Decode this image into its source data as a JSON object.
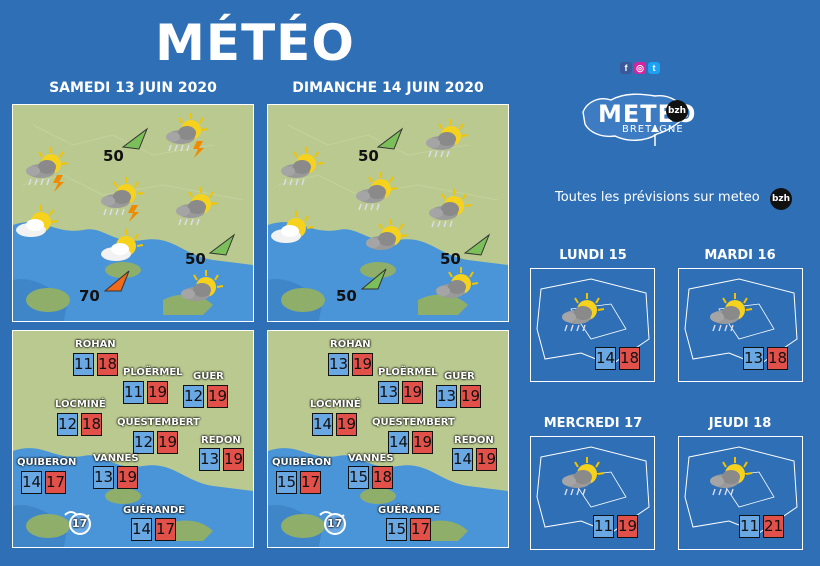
{
  "title": "MÉTÉO",
  "days": [
    {
      "label": "SAMEDI 13 JUIN 2020",
      "winds": [
        "50",
        "50",
        "70"
      ],
      "towns": [
        {
          "name": "ROHAN",
          "min": "11",
          "max": "18"
        },
        {
          "name": "PLOËRMEL",
          "min": "11",
          "max": "19"
        },
        {
          "name": "GUER",
          "min": "12",
          "max": "19"
        },
        {
          "name": "LOCMINÉ",
          "min": "12",
          "max": "18"
        },
        {
          "name": "QUESTEMBERT",
          "min": "12",
          "max": "19"
        },
        {
          "name": "REDON",
          "min": "13",
          "max": "19"
        },
        {
          "name": "QUIBERON",
          "min": "14",
          "max": "17"
        },
        {
          "name": "VANNES",
          "min": "13",
          "max": "19"
        },
        {
          "name": "GUÉRANDE",
          "min": "14",
          "max": "17"
        }
      ],
      "sea_temp": "17"
    },
    {
      "label": "DIMANCHE 14 JUIN 2020",
      "winds": [
        "50",
        "50",
        "50"
      ],
      "towns": [
        {
          "name": "ROHAN",
          "min": "13",
          "max": "19"
        },
        {
          "name": "PLOËRMEL",
          "min": "13",
          "max": "19"
        },
        {
          "name": "GUER",
          "min": "13",
          "max": "19"
        },
        {
          "name": "LOCMINÉ",
          "min": "14",
          "max": "19"
        },
        {
          "name": "QUESTEMBERT",
          "min": "14",
          "max": "19"
        },
        {
          "name": "REDON",
          "min": "14",
          "max": "19"
        },
        {
          "name": "QUIBERON",
          "min": "15",
          "max": "17"
        },
        {
          "name": "VANNES",
          "min": "15",
          "max": "18"
        },
        {
          "name": "GUÉRANDE",
          "min": "15",
          "max": "17"
        }
      ],
      "sea_temp": "17"
    }
  ],
  "logo": {
    "text": "METEO",
    "sub": "BRETAGNE",
    "badge": "bzh"
  },
  "promo": "Toutes les prévisions sur meteo",
  "promo_badge": "bzh",
  "forecast": [
    {
      "label": "LUNDI 15",
      "min": "14",
      "max": "18"
    },
    {
      "label": "MARDI 16",
      "min": "13",
      "max": "18"
    },
    {
      "label": "MERCREDI 17",
      "min": "11",
      "max": "19"
    },
    {
      "label": "JEUDI 18",
      "min": "11",
      "max": "21"
    }
  ],
  "social_icons": [
    "facebook-icon",
    "instagram-icon",
    "twitter-icon"
  ],
  "colors": {
    "background": "#2f6fb6",
    "min": "#6aa8e4",
    "max": "#e2504a",
    "land": "#b9c98f",
    "sea": "#4a95d8"
  }
}
